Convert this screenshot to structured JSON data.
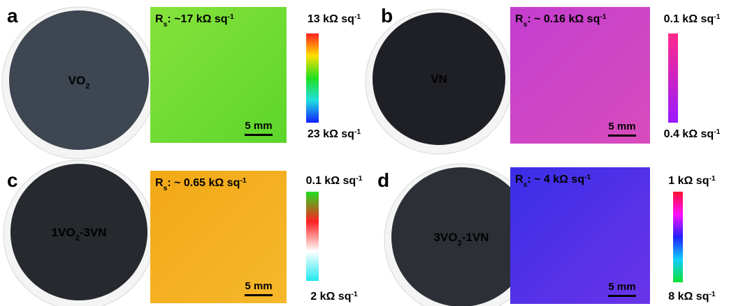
{
  "panels": [
    {
      "letter": "a",
      "sample": [
        {
          "text": "VO"
        },
        {
          "text": "2",
          "sub": true
        }
      ],
      "rs": [
        {
          "text": "R"
        },
        {
          "text": "s",
          "sub": true
        },
        {
          "text": ": ~17 kΩ sq"
        },
        {
          "text": "-1",
          "sup": true
        }
      ],
      "cbar_top": [
        {
          "text": "13 kΩ sq"
        },
        {
          "text": "-1",
          "sup": true
        }
      ],
      "cbar_bottom": [
        {
          "text": "23 kΩ sq"
        },
        {
          "text": "-1",
          "sup": true
        }
      ],
      "scale": "5 mm",
      "disk_color": "#3d4651",
      "map_colors": [
        "#86e23c",
        "#5cd62c"
      ],
      "cbar_colors": [
        "#ff2020",
        "#ffe000",
        "#20e020",
        "#20e0e0",
        "#1020ff"
      ]
    },
    {
      "letter": "b",
      "sample": [
        {
          "text": "VN"
        }
      ],
      "rs": [
        {
          "text": "R"
        },
        {
          "text": "s",
          "sub": true
        },
        {
          "text": ": ~ 0.16 kΩ sq"
        },
        {
          "text": "-1",
          "sup": true
        }
      ],
      "cbar_top": [
        {
          "text": "0.1 kΩ sq"
        },
        {
          "text": "-1",
          "sup": true
        }
      ],
      "cbar_bottom": [
        {
          "text": "0.4 kΩ sq"
        },
        {
          "text": "-1",
          "sup": true
        }
      ],
      "scale": "5 mm",
      "disk_color": "#1f2025",
      "map_colors": [
        "#c43ed0",
        "#d84cbc"
      ],
      "cbar_colors": [
        "#ff2a8a",
        "#9a1aff"
      ]
    },
    {
      "letter": "c",
      "sample": [
        {
          "text": "1VO"
        },
        {
          "text": "2",
          "sub": true
        },
        {
          "text": "-3VN"
        }
      ],
      "rs": [
        {
          "text": "R"
        },
        {
          "text": "s",
          "sub": true
        },
        {
          "text": ": ~ 0.65 kΩ sq"
        },
        {
          "text": "-1",
          "sup": true
        }
      ],
      "cbar_top": [
        {
          "text": "0.1 kΩ sq"
        },
        {
          "text": "-1",
          "sup": true
        }
      ],
      "cbar_bottom": [
        {
          "text": "2 kΩ sq"
        },
        {
          "text": "-1",
          "sup": true
        }
      ],
      "scale": "5 mm",
      "disk_color": "#26292e",
      "map_colors": [
        "#f2a816",
        "#f6b82c"
      ],
      "cbar_colors": [
        "#20e020",
        "#ff2020",
        "#ffffff",
        "#20e8f0"
      ]
    },
    {
      "letter": "d",
      "sample": [
        {
          "text": "3VO"
        },
        {
          "text": "2",
          "sub": true
        },
        {
          "text": "-1VN"
        }
      ],
      "rs": [
        {
          "text": "R"
        },
        {
          "text": "s",
          "sub": true
        },
        {
          "text": ": ~ 4 kΩ sq"
        },
        {
          "text": "-1",
          "sup": true
        }
      ],
      "cbar_top": [
        {
          "text": "1 kΩ sq"
        },
        {
          "text": "-1",
          "sup": true
        }
      ],
      "cbar_bottom": [
        {
          "text": "8 kΩ sq"
        },
        {
          "text": "-1",
          "sup": true
        }
      ],
      "scale": "5 mm",
      "disk_color": "#2c3036",
      "map_colors": [
        "#3a2ee8",
        "#6a34e8"
      ],
      "cbar_colors": [
        "#ff1030",
        "#ff10ff",
        "#2020ff",
        "#10d0ff",
        "#10e030"
      ]
    }
  ]
}
